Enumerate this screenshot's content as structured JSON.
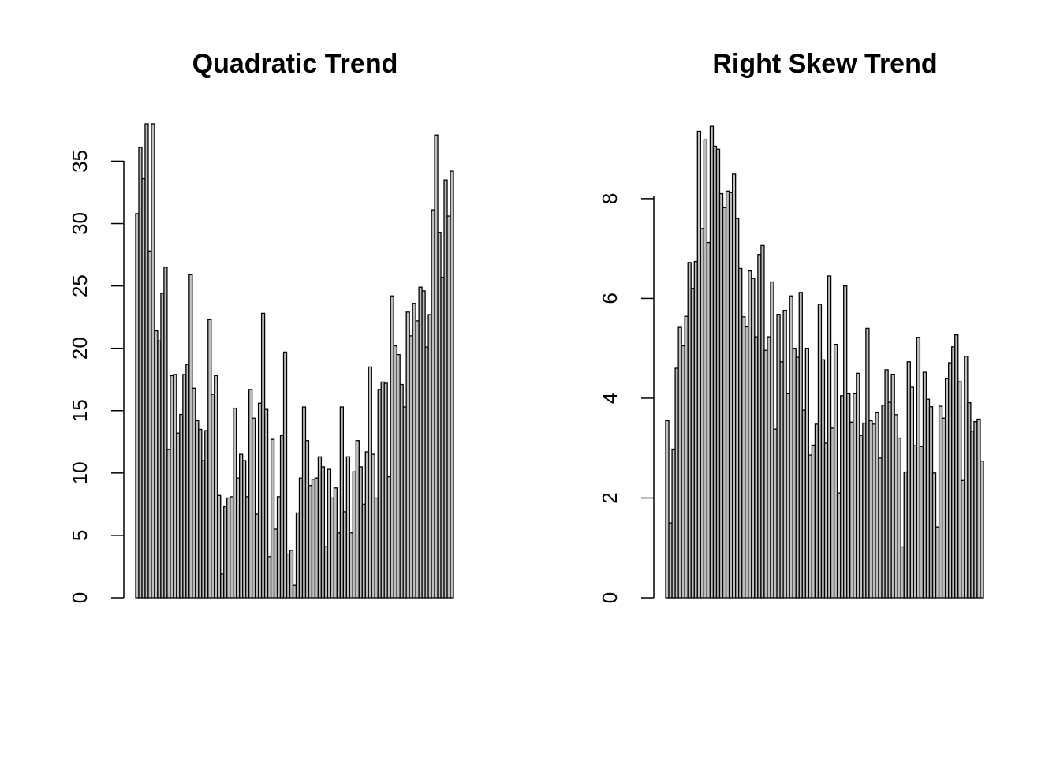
{
  "chart_data": [
    {
      "type": "bar",
      "title": "Quadratic Trend",
      "xlabel": "",
      "ylabel": "",
      "ylim": [
        0,
        38
      ],
      "yticks": [
        0,
        5,
        10,
        15,
        20,
        25,
        30,
        35
      ],
      "grid": false,
      "legend": "none",
      "bar_fill": "#bebebe",
      "bar_stroke": "#000000",
      "values": [
        30.8,
        36.1,
        33.6,
        38.0,
        27.8,
        38.0,
        21.4,
        20.6,
        24.4,
        26.5,
        11.9,
        17.8,
        17.9,
        13.2,
        14.7,
        17.9,
        18.7,
        25.9,
        16.8,
        14.2,
        13.5,
        11.0,
        13.4,
        22.3,
        16.3,
        17.8,
        8.2,
        1.9,
        7.3,
        8.0,
        8.1,
        15.2,
        9.6,
        11.5,
        11.0,
        8.1,
        16.7,
        14.4,
        6.7,
        15.6,
        22.8,
        15.1,
        3.3,
        12.7,
        5.5,
        8.1,
        13.0,
        19.7,
        3.5,
        3.8,
        1.0,
        6.8,
        9.6,
        15.3,
        12.6,
        9.0,
        9.5,
        9.6,
        11.3,
        10.5,
        4.1,
        10.3,
        8.0,
        8.8,
        5.2,
        15.3,
        6.9,
        11.3,
        5.2,
        10.1,
        12.6,
        10.5,
        7.5,
        11.7,
        18.5,
        11.5,
        8.0,
        16.7,
        17.3,
        17.2,
        9.7,
        24.2,
        20.2,
        19.5,
        17.1,
        15.3,
        22.9,
        21.0,
        23.6,
        22.2,
        24.9,
        24.6,
        20.1,
        22.7,
        31.1,
        37.1,
        29.3,
        25.7,
        33.5,
        30.6,
        34.2
      ]
    },
    {
      "type": "bar",
      "title": "Right Skew Trend",
      "xlabel": "",
      "ylabel": "",
      "ylim": [
        0,
        9.5
      ],
      "yticks": [
        0,
        2,
        4,
        6,
        8
      ],
      "grid": false,
      "legend": "none",
      "bar_fill": "#bebebe",
      "bar_stroke": "#000000",
      "values": [
        3.55,
        1.5,
        2.98,
        4.6,
        5.42,
        5.05,
        5.64,
        6.72,
        6.2,
        6.74,
        9.35,
        7.4,
        9.18,
        7.12,
        9.45,
        9.05,
        8.99,
        8.1,
        7.82,
        8.15,
        8.12,
        8.49,
        7.6,
        6.6,
        5.63,
        5.43,
        6.55,
        6.4,
        5.23,
        6.88,
        7.06,
        4.96,
        5.23,
        6.33,
        3.38,
        5.68,
        4.73,
        5.76,
        4.1,
        6.05,
        5.0,
        4.82,
        6.12,
        3.76,
        5.0,
        2.86,
        3.06,
        3.48,
        5.88,
        4.77,
        3.1,
        6.45,
        3.4,
        5.08,
        2.1,
        4.05,
        6.25,
        4.1,
        3.52,
        4.1,
        4.5,
        3.25,
        3.5,
        5.4,
        3.55,
        3.48,
        3.71,
        2.8,
        3.86,
        4.57,
        3.92,
        4.48,
        3.67,
        3.2,
        1.02,
        2.52,
        4.73,
        4.22,
        3.05,
        5.22,
        3.03,
        4.52,
        3.98,
        3.83,
        2.5,
        1.42,
        3.84,
        3.6,
        4.4,
        4.71,
        5.03,
        5.27,
        4.33,
        2.35,
        4.84,
        3.91,
        3.34,
        3.53,
        3.58,
        2.74
      ]
    }
  ]
}
